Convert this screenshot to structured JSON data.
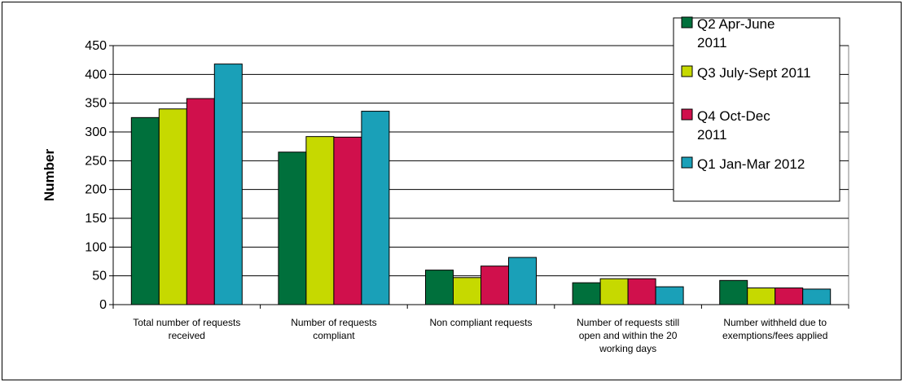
{
  "chart_data": {
    "type": "bar",
    "title": "",
    "xlabel": "",
    "ylabel": "Number",
    "ylim": [
      0,
      450
    ],
    "yticks": [
      0,
      50,
      100,
      150,
      200,
      250,
      300,
      350,
      400,
      450
    ],
    "grid": true,
    "legend_position": "top-right",
    "categories": [
      [
        "Total number of requests",
        "received"
      ],
      [
        "Number of requests",
        "compliant"
      ],
      [
        "Non compliant requests"
      ],
      [
        "Number of requests still",
        "open and within the 20",
        "working days"
      ],
      [
        "Number withheld due to",
        "exemptions/fees applied"
      ]
    ],
    "series": [
      {
        "name": [
          "Q2 Apr-June",
          "2011"
        ],
        "color": "#00703c",
        "values": [
          325,
          265,
          60,
          38,
          42
        ]
      },
      {
        "name": [
          "Q3 July-Sept 2011"
        ],
        "color": "#c6d900",
        "values": [
          340,
          292,
          47,
          45,
          29
        ]
      },
      {
        "name": [
          "Q4 Oct-Dec",
          "2011"
        ],
        "color": "#d0104c",
        "values": [
          358,
          291,
          67,
          45,
          29
        ]
      },
      {
        "name": [
          "Q1 Jan-Mar 2012"
        ],
        "color": "#1aa0b8",
        "values": [
          418,
          336,
          82,
          31,
          27
        ]
      }
    ]
  }
}
